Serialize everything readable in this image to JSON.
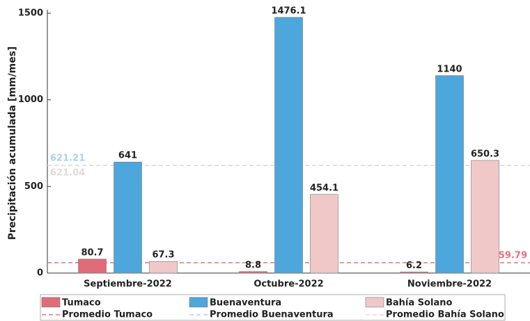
{
  "chart_data": {
    "type": "bar",
    "y_label": "Precipitación acumulada [mm/mes]",
    "categories": [
      "Septiembre-2022",
      "Octubre-2022",
      "Noviembre-2022"
    ],
    "series": [
      {
        "name": "Tumaco",
        "color": "#e06c78",
        "values": [
          80.7,
          8.8,
          6.2
        ]
      },
      {
        "name": "Buenaventura",
        "color": "#4ea7dc",
        "values": [
          641,
          1476.1,
          1140
        ]
      },
      {
        "name": "Bahía Solano",
        "color": "#f0c8c8",
        "values": [
          67.3,
          454.1,
          650.3
        ]
      }
    ],
    "averages": [
      {
        "name": "Promedio Tumaco",
        "color": "#e87080",
        "value": 59.79
      },
      {
        "name": "Promedio Buenaventura",
        "color": "#a8d4ee",
        "value": 621.21
      },
      {
        "name": "Promedio Bahía Solano",
        "color": "#e6dada",
        "value": 621.04
      }
    ],
    "ylim": [
      0,
      1500
    ],
    "yticks": [
      0,
      500,
      1000,
      1500
    ]
  }
}
